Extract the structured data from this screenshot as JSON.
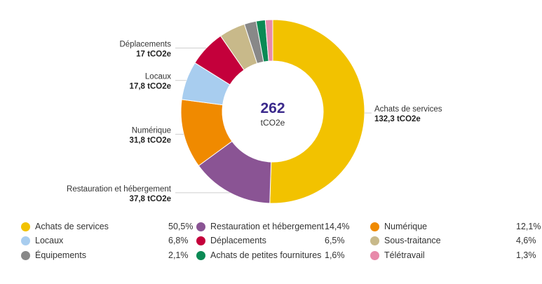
{
  "chart_data": {
    "type": "pie",
    "subtype": "donut",
    "center_value": "262",
    "center_unit": "tCO2e",
    "unit": "tCO2e",
    "slices": [
      {
        "name": "Achats de services",
        "value": 132.3,
        "value_label": "132,3 tCO2e",
        "percent": "50,5%",
        "color": "#f2c200",
        "show_callout": true
      },
      {
        "name": "Restauration et hébergement",
        "value": 37.8,
        "value_label": "37,8 tCO2e",
        "percent": "14,4%",
        "color": "#8a5494",
        "show_callout": true
      },
      {
        "name": "Numérique",
        "value": 31.8,
        "value_label": "31,8 tCO2e",
        "percent": "12,1%",
        "color": "#f08a00",
        "show_callout": true
      },
      {
        "name": "Locaux",
        "value": 17.8,
        "value_label": "17,8 tCO2e",
        "percent": "6,8%",
        "color": "#a8cdef",
        "show_callout": true
      },
      {
        "name": "Déplacements",
        "value": 17,
        "value_label": "17 tCO2e",
        "percent": "6,5%",
        "color": "#c4003b",
        "show_callout": true
      },
      {
        "name": "Sous-traitance",
        "value": 12.1,
        "value_label": "",
        "percent": "4,6%",
        "color": "#c8b98a",
        "show_callout": false
      },
      {
        "name": "Équipements",
        "value": 5.5,
        "value_label": "",
        "percent": "2,1%",
        "color": "#888888",
        "show_callout": false
      },
      {
        "name": "Achats de petites fournitures",
        "value": 4.2,
        "value_label": "",
        "percent": "1,6%",
        "color": "#0b8a55",
        "show_callout": false
      },
      {
        "name": "Télétravail",
        "value": 3.4,
        "value_label": "",
        "percent": "1,3%",
        "color": "#e88aaa",
        "show_callout": false
      }
    ],
    "legend_order": [
      "Achats de services",
      "Restauration et hébergement",
      "Numérique",
      "Locaux",
      "Déplacements",
      "Sous-traitance",
      "Équipements",
      "Achats de petites fournitures",
      "Télétravail"
    ],
    "legend_placement": "bottom"
  }
}
